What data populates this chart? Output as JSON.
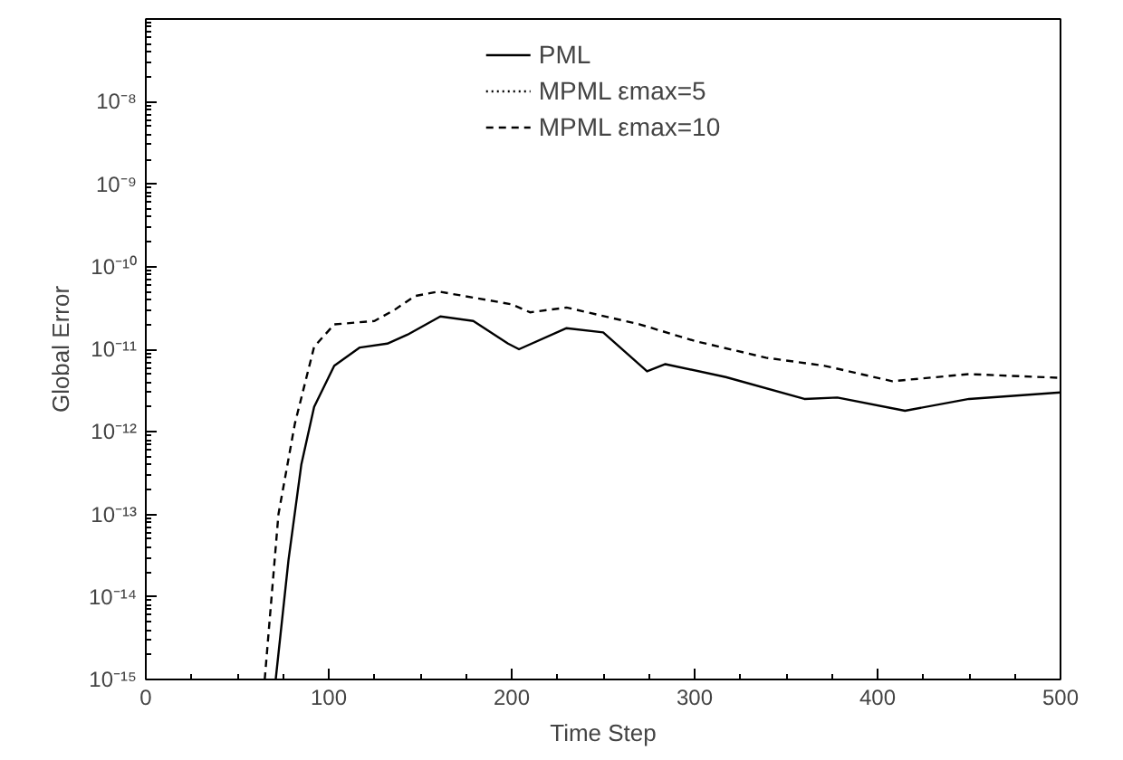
{
  "chart_data": {
    "type": "line",
    "xlabel": "Time Step",
    "ylabel": "Global Error",
    "log": "y",
    "grid": false,
    "legend": "top",
    "marker": "none",
    "xlim": [
      0,
      500
    ],
    "xticks": [
      0,
      100,
      200,
      300,
      400,
      500
    ],
    "ylim": [
      1e-15,
      1e-07
    ],
    "yticks": [
      {
        "value": 1e-15,
        "label": "10⁻¹⁵"
      },
      {
        "value": 1e-14,
        "label": "10⁻¹⁴"
      },
      {
        "value": 1e-13,
        "label": "10⁻¹³"
      },
      {
        "value": 1e-12,
        "label": "10⁻¹²"
      },
      {
        "value": 1e-11,
        "label": "10⁻¹¹"
      },
      {
        "value": 1e-10,
        "label": "10⁻¹⁰"
      },
      {
        "value": 1e-09,
        "label": "10⁻⁹"
      },
      {
        "value": 1e-08,
        "label": "10⁻⁸"
      },
      {
        "value": 1e-07,
        "label": null
      }
    ],
    "series": [
      {
        "name": "PML",
        "color": "#000000",
        "line_style": "solid",
        "x": [
          71,
          78,
          85,
          92,
          103,
          117,
          132,
          143,
          161,
          179,
          198,
          204,
          230,
          250,
          274,
          284,
          317,
          360,
          378,
          415,
          450,
          500
        ],
        "values": [
          1e-15,
          2.8e-14,
          4e-13,
          2e-12,
          6.3e-12,
          1.05e-11,
          1.17e-11,
          1.5e-11,
          2.5e-11,
          2.2e-11,
          1.17e-11,
          1e-11,
          1.8e-11,
          1.6e-11,
          5.4e-12,
          6.6e-12,
          4.6e-12,
          2.5e-12,
          2.6e-12,
          1.8e-12,
          2.5e-12,
          3e-12
        ]
      },
      {
        "name": "MPML εmax=5",
        "color": "#000000",
        "line_style": "dotted",
        "type": "line"
      },
      {
        "name": "MPML εmax=10",
        "color": "#000000",
        "line_style": "dashed",
        "x": [
          65,
          72.5,
          81.5,
          92,
          103,
          125,
          136,
          147,
          160,
          200,
          210,
          230,
          270,
          300,
          339,
          371,
          408,
          450,
          500
        ],
        "values": [
          1e-15,
          1e-13,
          1.26e-12,
          1.07e-11,
          2e-11,
          2.2e-11,
          3e-11,
          4.4e-11,
          5e-11,
          3.5e-11,
          2.8e-11,
          3.2e-11,
          2e-11,
          1.26e-11,
          7.9e-12,
          6.3e-12,
          4.1e-12,
          5e-12,
          4.5e-12
        ]
      }
    ]
  }
}
